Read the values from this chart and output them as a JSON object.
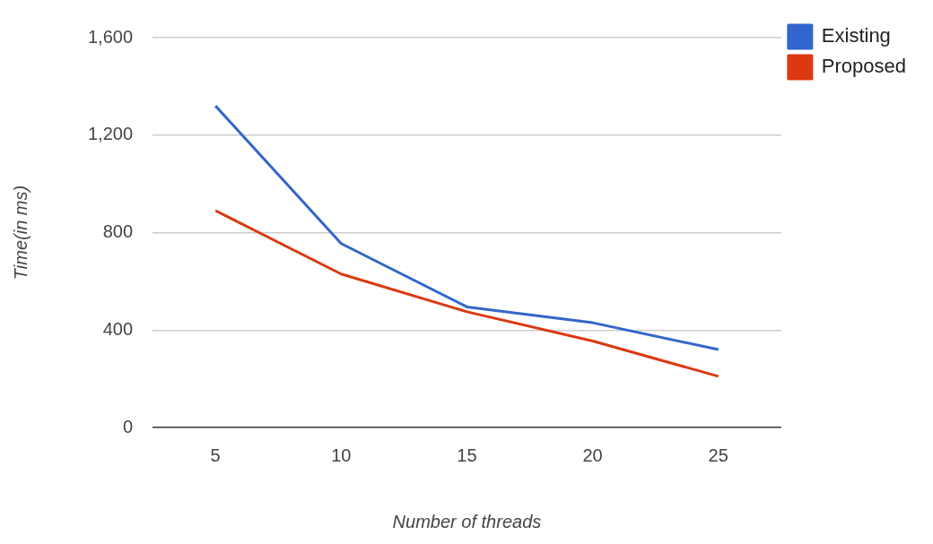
{
  "chart_data": {
    "type": "line",
    "xlabel": "Number of threads",
    "ylabel": "Time(in ms)",
    "categories": [
      "5",
      "10",
      "15",
      "20",
      "25"
    ],
    "series": [
      {
        "name": "Existing",
        "color": "#3366cc",
        "values": [
          1320,
          755,
          495,
          430,
          320
        ]
      },
      {
        "name": "Proposed",
        "color": "#dc3912",
        "values": [
          890,
          630,
          475,
          355,
          210
        ]
      }
    ],
    "ylim": [
      0,
      1600
    ],
    "yticks": [
      0,
      {
        "value": 400,
        "label": "400"
      },
      {
        "value": 800,
        "label": "800"
      },
      {
        "value": 1200,
        "label": "1,200"
      },
      {
        "value": 1600,
        "label": "1,600"
      }
    ],
    "grid": "y",
    "legend": "top right",
    "marker": "none",
    "line_style": "solid"
  }
}
